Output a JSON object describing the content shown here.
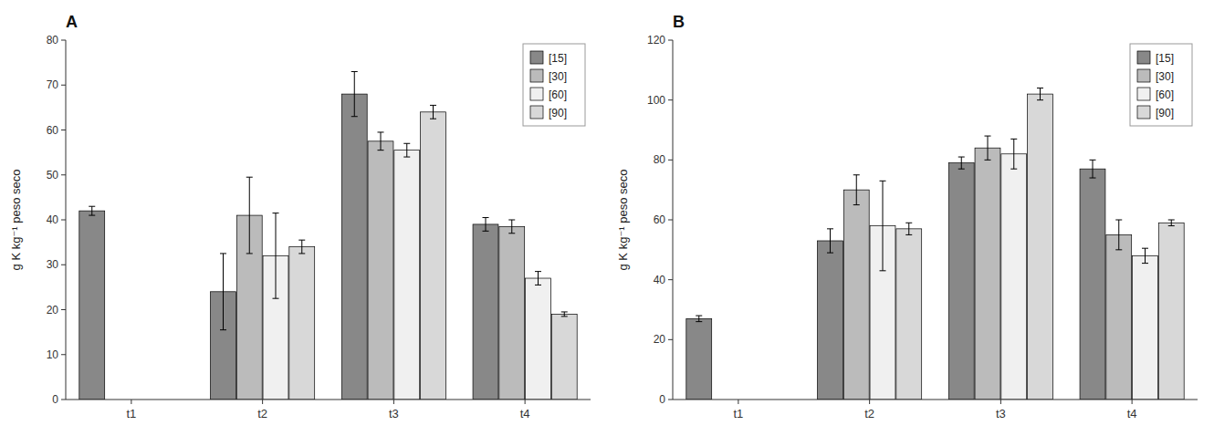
{
  "chart_data": [
    {
      "type": "bar",
      "title": "A",
      "y_label": "g K kg⁻¹ peso seco",
      "categories": [
        "t1",
        "t2",
        "t3",
        "t4"
      ],
      "series": [
        {
          "name": "[15]",
          "color": "#888888",
          "values": [
            42.0,
            24.0,
            68.0,
            39.0
          ],
          "errors": [
            1.0,
            8.5,
            5.0,
            1.5
          ]
        },
        {
          "name": "[30]",
          "color": "#bbbbbb",
          "values": [
            null,
            41.0,
            57.5,
            38.5
          ],
          "errors": [
            null,
            8.5,
            2.0,
            1.5
          ]
        },
        {
          "name": "[60]",
          "color": "#f0f0f0",
          "values": [
            null,
            32.0,
            55.5,
            27.0
          ],
          "errors": [
            null,
            9.5,
            1.5,
            1.5
          ]
        },
        {
          "name": "[90]",
          "color": "#d8d8d8",
          "values": [
            null,
            34.0,
            64.0,
            19.0
          ],
          "errors": [
            null,
            1.5,
            1.5,
            0.5
          ]
        }
      ],
      "ylim": [
        0,
        80
      ],
      "yticks": [
        0,
        10,
        20,
        30,
        40,
        50,
        60,
        70,
        80
      ],
      "grid": false,
      "legend": "upper right"
    },
    {
      "type": "bar",
      "title": "B",
      "y_label": "g K kg⁻¹ peso seco",
      "categories": [
        "t1",
        "t2",
        "t3",
        "t4"
      ],
      "series": [
        {
          "name": "[15]",
          "color": "#888888",
          "values": [
            27.0,
            53.0,
            79.0,
            77.0
          ],
          "errors": [
            1.0,
            4.0,
            2.0,
            3.0
          ]
        },
        {
          "name": "[30]",
          "color": "#bbbbbb",
          "values": [
            null,
            70.0,
            84.0,
            55.0
          ],
          "errors": [
            null,
            5.0,
            4.0,
            5.0
          ]
        },
        {
          "name": "[60]",
          "color": "#f0f0f0",
          "values": [
            null,
            58.0,
            82.0,
            48.0
          ],
          "errors": [
            null,
            15.0,
            5.0,
            2.5
          ]
        },
        {
          "name": "[90]",
          "color": "#d8d8d8",
          "values": [
            null,
            57.0,
            102.0,
            59.0
          ],
          "errors": [
            null,
            2.0,
            2.0,
            1.0
          ]
        }
      ],
      "ylim": [
        0,
        120
      ],
      "yticks": [
        0,
        20,
        40,
        60,
        80,
        100,
        120
      ],
      "grid": false,
      "legend": "upper right"
    }
  ]
}
